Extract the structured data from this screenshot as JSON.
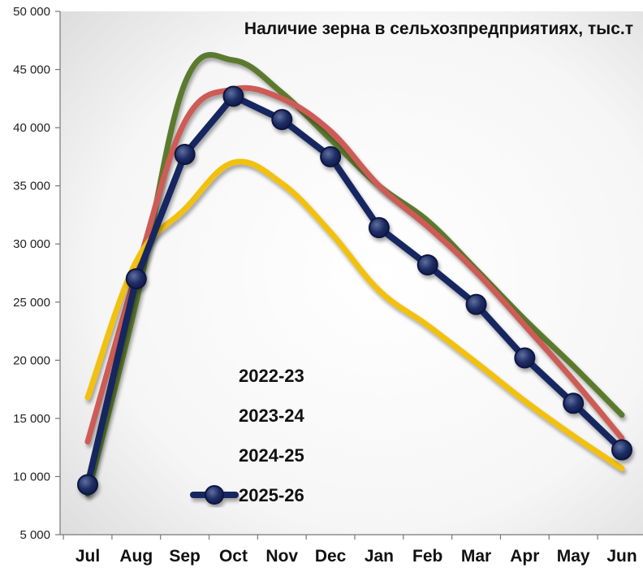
{
  "chart_data": {
    "type": "line",
    "title": "Наличие зерна в сельхозпредприятиях, тыс.т",
    "xlabel": "",
    "ylabel": "",
    "categories": [
      "Jul",
      "Aug",
      "Sep",
      "Oct",
      "Nov",
      "Dec",
      "Jan",
      "Feb",
      "Mar",
      "Apr",
      "May",
      "Jun"
    ],
    "ylim": [
      5000,
      50000
    ],
    "yticks": [
      5000,
      10000,
      15000,
      20000,
      25000,
      30000,
      35000,
      40000,
      45000,
      50000
    ],
    "ytick_labels": [
      "5 000",
      "10 000",
      "15 000",
      "20 000",
      "25 000",
      "30 000",
      "35 000",
      "40 000",
      "45 000",
      "50 000"
    ],
    "legend_position": "lower-left",
    "series": [
      {
        "name": "2022-23",
        "color": "#5b7a2e",
        "markers": false,
        "values": [
          8500,
          25000,
          43800,
          45800,
          43000,
          39000,
          35000,
          32000,
          27800,
          23500,
          19500,
          15300
        ]
      },
      {
        "name": "2023-24",
        "color": "#cd5b57",
        "markers": false,
        "values": [
          13000,
          27500,
          40500,
          43300,
          42500,
          39700,
          35000,
          31500,
          27600,
          23000,
          18300,
          13300
        ]
      },
      {
        "name": "2024-25",
        "color": "#f2c10f",
        "markers": false,
        "values": [
          16800,
          28500,
          33000,
          37000,
          35200,
          31000,
          26000,
          23000,
          19800,
          16500,
          13500,
          10700
        ]
      },
      {
        "name": "2025-26",
        "color": "#152660",
        "markers": true,
        "values": [
          9300,
          27000,
          37700,
          42700,
          40700,
          37500,
          31400,
          28200,
          24800,
          20200,
          16300,
          12300
        ]
      }
    ]
  }
}
